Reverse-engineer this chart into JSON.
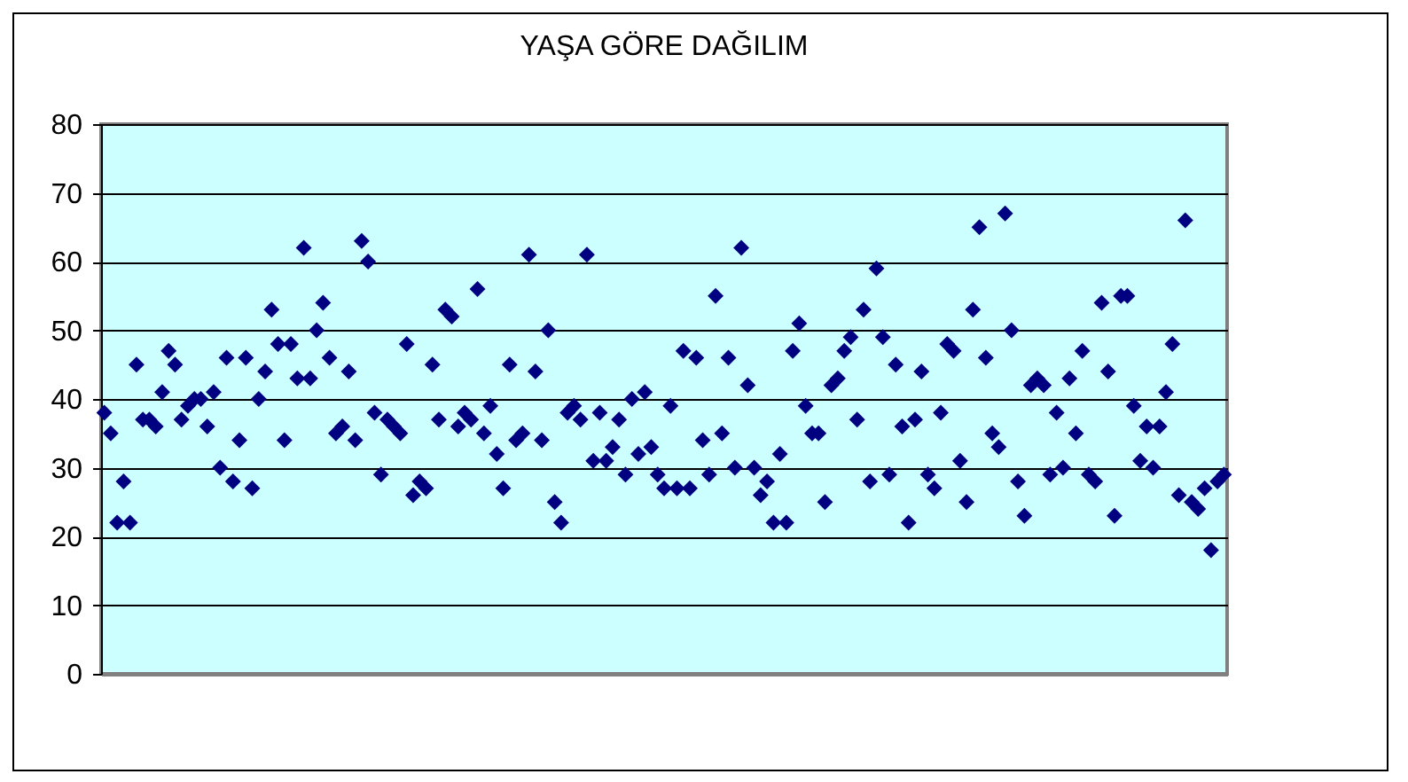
{
  "chart_data": {
    "type": "scatter",
    "title": "YAŞA GÖRE DAĞILIM",
    "categories": [
      null,
      null,
      null,
      null,
      null,
      null,
      null,
      null,
      null,
      null,
      null,
      null,
      null,
      null,
      null,
      null,
      null,
      null,
      null,
      null,
      null,
      null,
      null,
      null,
      null,
      null,
      null,
      null,
      null,
      null,
      null,
      null,
      null,
      null,
      null,
      null,
      null,
      null,
      null,
      null,
      null,
      null,
      null,
      null,
      null,
      null,
      null,
      null,
      null,
      null,
      null,
      null,
      null,
      null,
      null,
      null,
      null,
      null,
      null,
      null,
      null,
      null,
      null,
      null,
      null,
      null,
      null,
      null,
      null,
      null,
      null,
      null,
      null,
      null,
      null,
      null,
      null,
      null,
      null,
      null,
      null,
      null,
      null,
      null,
      null,
      null,
      null,
      null,
      null,
      null,
      null,
      null,
      null,
      null,
      null,
      null,
      null,
      null,
      null,
      null,
      null,
      null,
      null,
      null,
      null,
      null,
      null,
      null,
      null,
      null,
      null,
      null,
      null,
      null,
      null,
      null,
      null,
      null,
      null,
      null,
      null,
      null,
      null,
      null,
      null,
      null,
      null,
      null,
      null,
      null,
      null,
      null,
      null,
      null,
      null,
      null,
      null,
      null,
      null,
      null,
      null,
      null,
      null,
      null,
      null,
      null,
      null,
      null,
      null,
      null,
      null,
      null,
      null,
      null,
      null,
      null,
      null,
      null,
      null,
      null,
      null,
      null,
      null,
      null,
      null,
      null,
      null,
      null,
      null,
      null,
      null,
      null,
      null,
      null,
      null
    ],
    "series": [
      {
        "color": "#000080",
        "values": [
          38,
          35,
          22,
          28,
          22,
          45,
          37,
          37,
          36,
          41,
          47,
          45,
          37,
          39,
          40,
          40,
          36,
          41,
          30,
          46,
          28,
          34,
          46,
          27,
          40,
          44,
          53,
          48,
          34,
          48,
          43,
          62,
          43,
          50,
          54,
          46,
          35,
          36,
          44,
          34,
          63,
          60,
          38,
          29,
          37,
          36,
          35,
          48,
          26,
          28,
          27,
          45,
          37,
          53,
          52,
          36,
          38,
          37,
          56,
          35,
          39,
          32,
          27,
          45,
          34,
          35,
          61,
          44,
          34,
          50,
          25,
          22,
          38,
          39,
          37,
          61,
          31,
          38,
          31,
          33,
          37,
          29,
          40,
          32,
          41,
          33,
          29,
          27,
          39,
          27,
          47,
          27,
          46,
          34,
          29,
          55,
          35,
          46,
          30,
          62,
          42,
          30,
          26,
          28,
          22,
          32,
          22,
          47,
          51,
          39,
          35,
          35,
          25,
          42,
          43,
          47,
          49,
          37,
          53,
          28,
          59,
          49,
          29,
          45,
          36,
          22,
          37,
          44,
          29,
          27,
          38,
          48,
          47,
          31,
          25,
          53,
          65,
          46,
          35,
          33,
          67,
          50,
          28,
          23,
          42,
          43,
          42,
          29,
          38,
          30,
          43,
          35,
          47,
          29,
          28,
          54,
          44,
          23,
          55,
          55,
          39,
          31,
          36,
          30,
          36,
          41,
          48,
          26,
          66,
          25,
          24,
          27,
          18,
          28,
          29
        ]
      }
    ],
    "ylim": [
      0,
      80
    ],
    "yticks": [
      0,
      10,
      20,
      30,
      40,
      50,
      60,
      70,
      80
    ],
    "grid": "y",
    "marker": "diamond",
    "tick_labels": "y"
  }
}
